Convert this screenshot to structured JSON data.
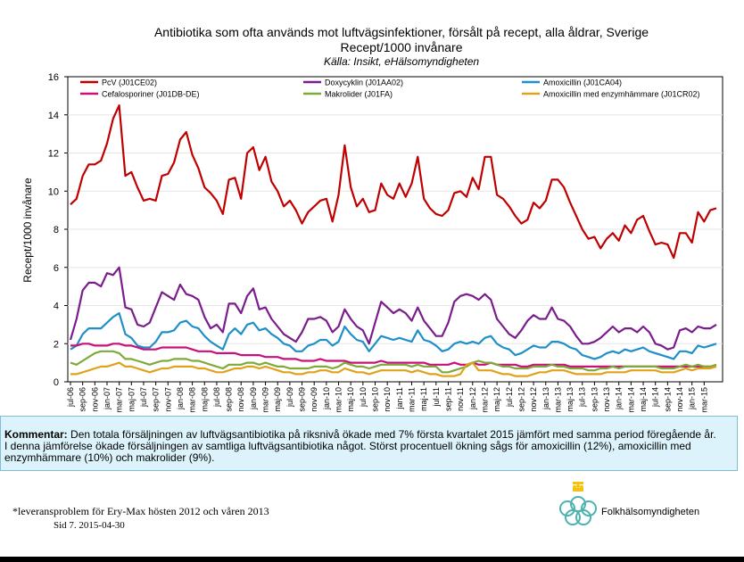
{
  "header": {
    "title_line1": "Antibiotika som ofta används mot luftvägsinfektioner, försålt på recept, alla åldrar, Sverige",
    "title_line2": "Recept/1000 invånare",
    "source": "Källa: Insikt, eHälsomyndigheten"
  },
  "chart_data": {
    "type": "line",
    "ylabel": "Recept/1000 invånare",
    "ylim": [
      0,
      16
    ],
    "yticks": [
      "0",
      "2",
      "4",
      "6",
      "8",
      "10",
      "12",
      "14",
      "16"
    ],
    "x_start": "jul-06",
    "x_labels": [
      "jul-06",
      "sep-06",
      "nov-06",
      "jan-07",
      "mar-07",
      "maj-07",
      "jul-07",
      "sep-07",
      "nov-07",
      "jan-08",
      "mar-08",
      "maj-08",
      "jul-08",
      "sep-08",
      "nov-08",
      "jan-09",
      "mar-09",
      "maj-09",
      "jul-09",
      "sep-09",
      "nov-09",
      "jan-10",
      "mar-10",
      "maj-10",
      "jul-10",
      "sep-10",
      "nov-10",
      "jan-11",
      "mar-11",
      "maj-11",
      "jul-11",
      "sep-11",
      "nov-11",
      "jan-12",
      "mar-12",
      "maj-12",
      "jul-12",
      "sep-12",
      "nov-12",
      "jan-13",
      "mar-13",
      "maj-13",
      "jul-13",
      "sep-13",
      "nov-13",
      "jan-14",
      "mar-14",
      "maj-14",
      "jul-14",
      "sep-14",
      "nov-14",
      "jan-15",
      "mar-15"
    ],
    "series": [
      {
        "name": "PcV (J01CE02)",
        "color": "#c00000",
        "values": [
          9.3,
          9.6,
          10.8,
          11.4,
          11.4,
          11.6,
          12.5,
          13.8,
          14.5,
          10.8,
          11.0,
          10.2,
          9.5,
          9.6,
          9.5,
          10.8,
          10.9,
          11.5,
          12.7,
          13.1,
          11.9,
          11.2,
          10.2,
          9.9,
          9.5,
          8.8,
          10.6,
          10.7,
          9.6,
          12.0,
          12.3,
          11.1,
          11.8,
          10.5,
          10.0,
          9.2,
          9.5,
          9.0,
          8.3,
          8.9,
          9.2,
          9.5,
          9.6,
          8.4,
          9.8,
          12.4,
          10.2,
          9.2,
          9.6,
          8.9,
          9.0,
          10.4,
          9.8,
          9.6,
          10.4,
          9.7,
          10.4,
          11.8,
          9.6,
          9.1,
          8.8,
          8.7,
          9.0,
          9.9,
          10.0,
          9.7,
          10.7,
          10.1,
          11.8,
          11.8,
          9.8,
          9.6,
          9.2,
          8.7,
          8.3,
          8.5,
          9.4,
          9.1,
          9.5,
          10.6,
          10.6,
          10.2,
          9.4,
          8.7,
          8.0,
          7.5,
          7.6,
          7.0,
          7.5,
          7.8,
          7.4,
          8.2,
          7.8,
          8.5,
          8.7,
          7.9,
          7.2,
          7.3,
          7.2,
          6.5,
          7.8,
          7.8,
          7.3,
          8.9,
          8.4,
          9.0,
          9.1
        ]
      },
      {
        "name": "Doxycyklin (J01AA02)",
        "color": "#7b1c8c",
        "values": [
          2.2,
          3.3,
          4.8,
          5.2,
          5.2,
          5.0,
          5.7,
          5.6,
          6.0,
          3.9,
          3.8,
          3.0,
          2.9,
          3.1,
          3.9,
          4.7,
          4.5,
          4.3,
          5.1,
          4.6,
          4.5,
          4.3,
          3.4,
          2.8,
          3.0,
          2.6,
          4.1,
          4.1,
          3.6,
          4.5,
          4.9,
          3.8,
          3.9,
          3.3,
          2.9,
          2.5,
          2.3,
          2.1,
          2.6,
          3.3,
          3.3,
          3.4,
          3.2,
          2.6,
          2.9,
          3.8,
          3.3,
          2.9,
          2.7,
          2.0,
          3.1,
          4.2,
          3.9,
          3.6,
          3.8,
          3.6,
          3.2,
          3.9,
          3.2,
          2.8,
          2.4,
          2.4,
          3.1,
          4.2,
          4.5,
          4.6,
          4.5,
          4.3,
          4.6,
          4.3,
          3.3,
          2.9,
          2.5,
          2.3,
          2.7,
          3.2,
          3.5,
          3.3,
          3.3,
          3.9,
          3.3,
          3.2,
          2.9,
          2.4,
          2.0,
          2.0,
          2.1,
          2.3,
          2.6,
          2.9,
          2.6,
          2.8,
          2.8,
          2.6,
          2.9,
          2.6,
          2.0,
          1.9,
          1.7,
          1.8,
          2.7,
          2.8,
          2.6,
          2.9,
          2.8,
          2.8,
          3.0
        ]
      },
      {
        "name": "Amoxicillin (J01CA04)",
        "color": "#1f8fc8",
        "values": [
          1.7,
          1.9,
          2.5,
          2.8,
          2.8,
          2.8,
          3.1,
          3.4,
          3.6,
          2.5,
          2.3,
          1.9,
          1.8,
          1.8,
          2.1,
          2.6,
          2.6,
          2.7,
          3.1,
          3.2,
          2.9,
          2.8,
          2.4,
          2.1,
          1.9,
          1.7,
          2.5,
          2.8,
          2.5,
          3.0,
          3.1,
          2.7,
          2.8,
          2.5,
          2.3,
          2.0,
          1.9,
          1.6,
          1.6,
          1.9,
          2.0,
          2.2,
          2.2,
          1.9,
          2.1,
          2.9,
          2.5,
          2.2,
          2.1,
          1.6,
          2.0,
          2.4,
          2.3,
          2.2,
          2.3,
          2.2,
          2.1,
          2.7,
          2.2,
          2.1,
          1.9,
          1.6,
          1.7,
          2.0,
          2.1,
          2.0,
          2.1,
          2.0,
          2.3,
          2.4,
          2.0,
          1.8,
          1.7,
          1.4,
          1.5,
          1.7,
          1.9,
          1.8,
          1.8,
          2.1,
          2.1,
          2.0,
          1.8,
          1.7,
          1.4,
          1.3,
          1.2,
          1.3,
          1.5,
          1.6,
          1.5,
          1.7,
          1.6,
          1.7,
          1.8,
          1.6,
          1.5,
          1.4,
          1.3,
          1.2,
          1.6,
          1.6,
          1.5,
          1.9,
          1.8,
          1.9,
          2.0
        ]
      },
      {
        "name": "Cefalosporiner (J01DB-DE)",
        "color": "#c8107a",
        "values": [
          1.9,
          1.9,
          2.0,
          2.0,
          1.9,
          1.9,
          1.9,
          2.0,
          2.0,
          1.9,
          1.9,
          1.8,
          1.7,
          1.7,
          1.7,
          1.8,
          1.8,
          1.8,
          1.8,
          1.8,
          1.7,
          1.6,
          1.6,
          1.6,
          1.5,
          1.5,
          1.5,
          1.5,
          1.4,
          1.4,
          1.4,
          1.4,
          1.3,
          1.3,
          1.3,
          1.2,
          1.2,
          1.2,
          1.1,
          1.1,
          1.1,
          1.2,
          1.1,
          1.1,
          1.1,
          1.1,
          1.0,
          1.0,
          1.0,
          1.0,
          1.0,
          1.1,
          1.0,
          1.0,
          1.0,
          1.0,
          1.0,
          1.0,
          1.0,
          0.9,
          0.9,
          0.9,
          0.9,
          1.0,
          0.9,
          0.9,
          1.0,
          0.9,
          0.9,
          1.0,
          0.9,
          0.9,
          0.9,
          0.9,
          0.8,
          0.8,
          0.9,
          0.9,
          0.9,
          0.9,
          0.9,
          0.9,
          0.8,
          0.8,
          0.8,
          0.8,
          0.8,
          0.8,
          0.8,
          0.8,
          0.8,
          0.8,
          0.8,
          0.8,
          0.8,
          0.8,
          0.8,
          0.8,
          0.8,
          0.8,
          0.8,
          0.8,
          0.8,
          0.8,
          0.8,
          0.8,
          0.8
        ]
      },
      {
        "name": "Makrolider (J01FA)",
        "color": "#7fa93a",
        "values": [
          1.0,
          0.9,
          1.1,
          1.3,
          1.5,
          1.6,
          1.6,
          1.6,
          1.5,
          1.2,
          1.2,
          1.1,
          1.0,
          0.9,
          1.0,
          1.1,
          1.1,
          1.2,
          1.2,
          1.2,
          1.1,
          1.1,
          1.0,
          0.9,
          0.8,
          0.7,
          0.9,
          0.9,
          0.9,
          1.0,
          1.0,
          0.9,
          1.0,
          0.9,
          0.8,
          0.8,
          0.7,
          0.7,
          0.7,
          0.7,
          0.8,
          0.8,
          0.8,
          0.7,
          0.8,
          1.0,
          0.9,
          0.8,
          0.8,
          0.7,
          0.8,
          0.9,
          0.9,
          0.9,
          0.9,
          0.9,
          0.8,
          0.9,
          0.8,
          0.8,
          0.8,
          0.5,
          0.5,
          0.6,
          0.7,
          0.8,
          1.0,
          1.1,
          1.0,
          1.0,
          0.9,
          0.8,
          0.8,
          0.7,
          0.7,
          0.7,
          0.8,
          0.8,
          0.8,
          0.9,
          0.8,
          0.8,
          0.7,
          0.7,
          0.7,
          0.6,
          0.6,
          0.7,
          0.7,
          0.8,
          0.7,
          0.8,
          0.8,
          0.8,
          0.8,
          0.8,
          0.8,
          0.7,
          0.7,
          0.7,
          0.8,
          0.9,
          0.8,
          0.9,
          0.8,
          0.8,
          0.9
        ]
      },
      {
        "name": "Amoxicillin med enzymhämmare (J01CR02)",
        "color": "#e0a21a",
        "values": [
          0.4,
          0.4,
          0.5,
          0.6,
          0.7,
          0.8,
          0.8,
          0.9,
          1.0,
          0.8,
          0.8,
          0.7,
          0.6,
          0.5,
          0.6,
          0.7,
          0.7,
          0.8,
          0.8,
          0.8,
          0.8,
          0.7,
          0.7,
          0.6,
          0.5,
          0.5,
          0.6,
          0.7,
          0.7,
          0.8,
          0.8,
          0.7,
          0.8,
          0.7,
          0.6,
          0.5,
          0.5,
          0.4,
          0.4,
          0.5,
          0.5,
          0.6,
          0.6,
          0.5,
          0.5,
          0.7,
          0.6,
          0.5,
          0.5,
          0.4,
          0.5,
          0.6,
          0.6,
          0.6,
          0.6,
          0.6,
          0.5,
          0.6,
          0.5,
          0.4,
          0.4,
          0.3,
          0.3,
          0.3,
          0.4,
          0.9,
          1.0,
          0.6,
          0.6,
          0.6,
          0.5,
          0.4,
          0.4,
          0.3,
          0.3,
          0.3,
          0.4,
          0.5,
          0.5,
          0.6,
          0.6,
          0.6,
          0.5,
          0.4,
          0.4,
          0.4,
          0.4,
          0.4,
          0.5,
          0.5,
          0.5,
          0.5,
          0.6,
          0.6,
          0.6,
          0.6,
          0.6,
          0.5,
          0.5,
          0.5,
          0.6,
          0.7,
          0.6,
          0.7,
          0.7,
          0.7,
          0.8
        ]
      }
    ]
  },
  "comment": {
    "label": "Kommentar:",
    "line1": " Den totala försäljningen av luftvägsantibiotika på riksnivå ökade med 7% första kvartalet 2015 jämfört med samma period föregående år.",
    "line2": "I denna jämförelse ökade försäljningen av samtliga luftvägsantibiotika något. Störst procentuell ökning sågs för amoxicillin (12%), amoxicillin med",
    "line3": "enzymhämmare (10%) och makrolider (9%)."
  },
  "footer": {
    "note": "*leveransproblem för Ery-Max hösten 2012 och våren 2013",
    "page": "Sid  7. 2015-04-30",
    "logo_text": "Folkhälsomyndigheten"
  }
}
